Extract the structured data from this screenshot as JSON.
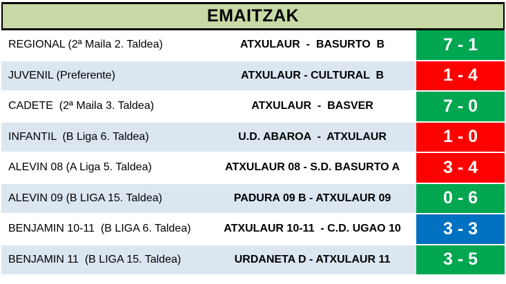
{
  "title": "EMAITZAK",
  "colors": {
    "header_bg": "#c7d9a5",
    "row_white": "#ffffff",
    "row_alt": "#dce6f1",
    "win": "#00a650",
    "loss": "#ff0000",
    "draw": "#0070c0",
    "score_text": "#ffffff",
    "border": "#000000"
  },
  "rows": [
    {
      "category": "REGIONAL (2ª Maila 2. Taldea)",
      "match": "ATXULAUR  -  BASURTO  B",
      "score": "7 - 1",
      "outcome": "win"
    },
    {
      "category": "JUVENIL (Preferente)",
      "match": "ATXULAUR - CULTURAL  B",
      "score": "1 - 4",
      "outcome": "loss"
    },
    {
      "category": "CADETE  (2ª Maila 3. Taldea)",
      "match": "ATXULAUR  -  BASVER",
      "score": "7 - 0",
      "outcome": "win"
    },
    {
      "category": "INFANTIL  (B Liga 6. Taldea)",
      "match": "U.D. ABAROA  -  ATXULAUR",
      "score": "1 - 0",
      "outcome": "loss"
    },
    {
      "category": "ALEVIN 08 (A Liga 5. Taldea)",
      "match": "ATXULAUR 08 - S.D. BASURTO A",
      "score": "3 - 4",
      "outcome": "loss"
    },
    {
      "category": "ALEVIN 09 (B LIGA 15. Taldea)",
      "match": "PADURA 09 B - ATXULAUR 09",
      "score": "0 - 6",
      "outcome": "win"
    },
    {
      "category": "BENJAMIN 10-11  (B LIGA 6. Taldea)",
      "match": "ATXULAUR 10-11  - C.D. UGAO 10",
      "score": "3 - 3",
      "outcome": "draw"
    },
    {
      "category": "BENJAMIN 11  (B LIGA 15. Taldea)",
      "match": "URDANETA D - ATXULAUR 11",
      "score": "3 - 5",
      "outcome": "win"
    }
  ]
}
